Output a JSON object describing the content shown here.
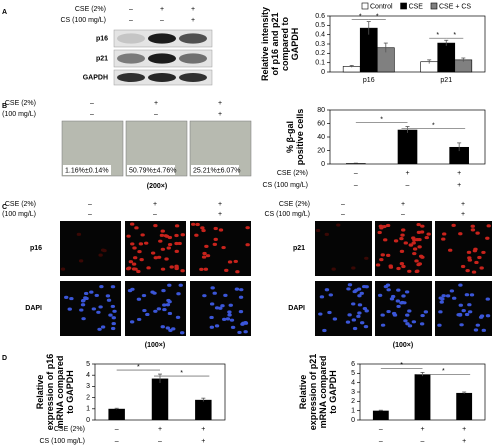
{
  "panels": {
    "letters": [
      "A",
      "B",
      "C",
      "D"
    ],
    "blot_labels": [
      "p16",
      "p21",
      "GAPDH"
    ],
    "image_labels": [
      "p16",
      "DAPI",
      "p21",
      "DAPI"
    ],
    "magnifications": [
      "(200×)",
      "(100×)",
      "(100×)"
    ]
  },
  "conditions": [
    {
      "label": "CSE (2%)",
      "signs": [
        "–",
        "+",
        "+"
      ]
    },
    {
      "label": "CS (100 mg/L)",
      "signs": [
        "–",
        "–",
        "+"
      ]
    }
  ],
  "chart_data": [
    {
      "type": "grouped_bar",
      "y_label": "Relative intensity of p16 and p21 compared to GAPDH",
      "categories": [
        "p16",
        "p21"
      ],
      "series": [
        {
          "name": "Control",
          "color": "#ffffff",
          "values": [
            0.06,
            0.11
          ],
          "errors": [
            0.01,
            0.02
          ]
        },
        {
          "name": "CSE",
          "color": "#000000",
          "values": [
            0.47,
            0.31
          ],
          "errors": [
            0.07,
            0.03
          ]
        },
        {
          "name": "CSE + CS",
          "color": "#808080",
          "values": [
            0.26,
            0.13
          ],
          "errors": [
            0.05,
            0.02
          ]
        }
      ],
      "ylim": [
        0,
        0.6
      ],
      "yticks": [
        0,
        0.1,
        0.2,
        0.3,
        0.4,
        0.5,
        0.6
      ],
      "annotations": [
        "*",
        "*",
        "*",
        "*"
      ],
      "legend": "top"
    },
    {
      "type": "bar",
      "y_label": "% β-gal positive cells",
      "categories": [
        null,
        null,
        null
      ],
      "values": [
        1.16,
        50.79,
        25.21
      ],
      "errors": [
        0.14,
        4.76,
        6.07
      ],
      "value_labels": [
        "1.16%±0.14%",
        "50.79%±4.76%",
        "25.21%±6.07%"
      ],
      "color": "#000000",
      "ylim": [
        0,
        80
      ],
      "yticks": [
        0,
        20,
        40,
        60,
        80
      ],
      "annotations": [
        "*",
        "*"
      ]
    },
    {
      "type": "bar",
      "y_label": "Relative expression of p16 mRNA compared to GAPDH",
      "categories": [
        null,
        null,
        null
      ],
      "values": [
        1,
        3.7,
        1.8
      ],
      "errors": [
        0.05,
        0.4,
        0.15
      ],
      "color": "#000000",
      "ylim": [
        0,
        5
      ],
      "yticks": [
        0,
        1,
        2,
        3,
        4,
        5
      ],
      "annotations": [
        "*",
        "*"
      ]
    },
    {
      "type": "bar",
      "y_label": "Relative expression of p21 mRNA compared to GAPDH",
      "categories": [
        null,
        null,
        null
      ],
      "values": [
        1,
        4.9,
        2.9
      ],
      "errors": [
        0.05,
        0.2,
        0.1
      ],
      "color": "#000000",
      "ylim": [
        0,
        6
      ],
      "yticks": [
        0,
        1,
        2,
        3,
        4,
        5,
        6
      ],
      "annotations": [
        "*",
        "*"
      ]
    }
  ]
}
